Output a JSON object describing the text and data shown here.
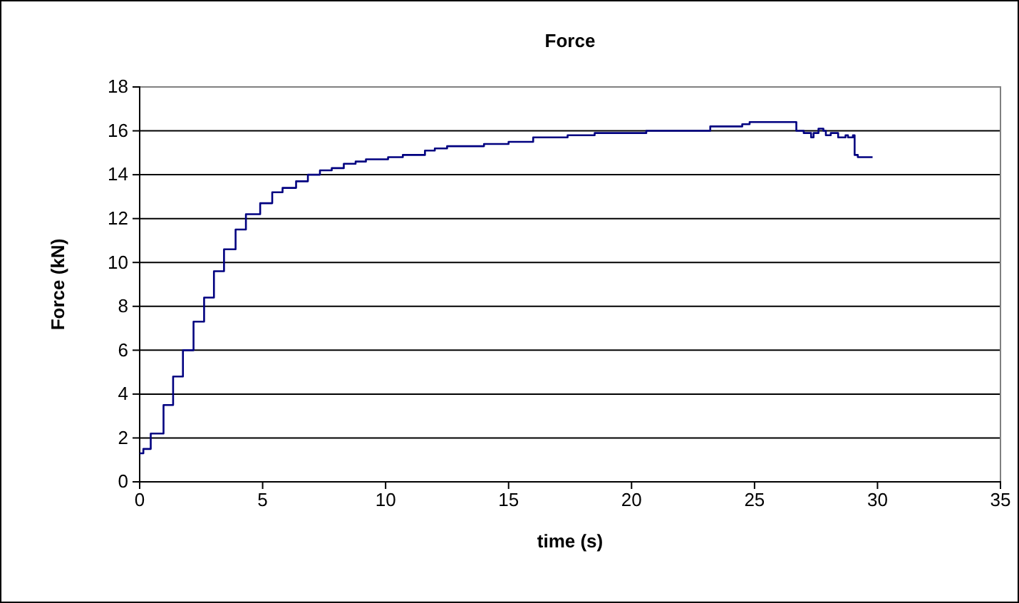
{
  "chart_data": {
    "type": "step",
    "title": "Force",
    "xlabel": "time (s)",
    "ylabel": "Force (kN)",
    "xlim": [
      0,
      35
    ],
    "xticks": [
      0,
      5,
      10,
      15,
      20,
      25,
      30,
      35
    ],
    "ylim": [
      0,
      18
    ],
    "yticks": [
      0,
      2,
      4,
      6,
      8,
      10,
      12,
      14,
      16,
      18
    ],
    "grid": "y",
    "series": [
      {
        "color": "#000080",
        "x": [
          0,
          0.15,
          0.45,
          0.97,
          1.36,
          1.76,
          2.19,
          2.62,
          3.02,
          3.43,
          3.9,
          4.32,
          4.9,
          5.39,
          5.81,
          6.36,
          6.84,
          7.33,
          7.81,
          8.3,
          8.78,
          9.2,
          10.1,
          10.7,
          11.6,
          12.0,
          12.5,
          13.0,
          14.0,
          15.0,
          16.0,
          17.4,
          18.5,
          20.6,
          23.2,
          24.5,
          24.8,
          26.7,
          27.0,
          27.3,
          27.4,
          27.6,
          27.8,
          27.9,
          28.1,
          28.4,
          28.7,
          28.8,
          29.0,
          29.07,
          29.2,
          29.8
        ],
        "values": [
          1.3,
          1.5,
          2.2,
          3.5,
          4.8,
          6.0,
          7.3,
          8.4,
          9.6,
          10.6,
          11.5,
          12.2,
          12.7,
          13.2,
          13.4,
          13.7,
          14.0,
          14.2,
          14.3,
          14.5,
          14.6,
          14.7,
          14.8,
          14.9,
          15.1,
          15.2,
          15.3,
          15.3,
          15.4,
          15.5,
          15.7,
          15.8,
          15.9,
          16.0,
          16.2,
          16.3,
          16.4,
          16.0,
          15.9,
          15.7,
          15.9,
          16.1,
          16.0,
          15.8,
          15.9,
          15.7,
          15.8,
          15.7,
          15.8,
          14.9,
          14.8,
          14.8
        ]
      }
    ]
  }
}
